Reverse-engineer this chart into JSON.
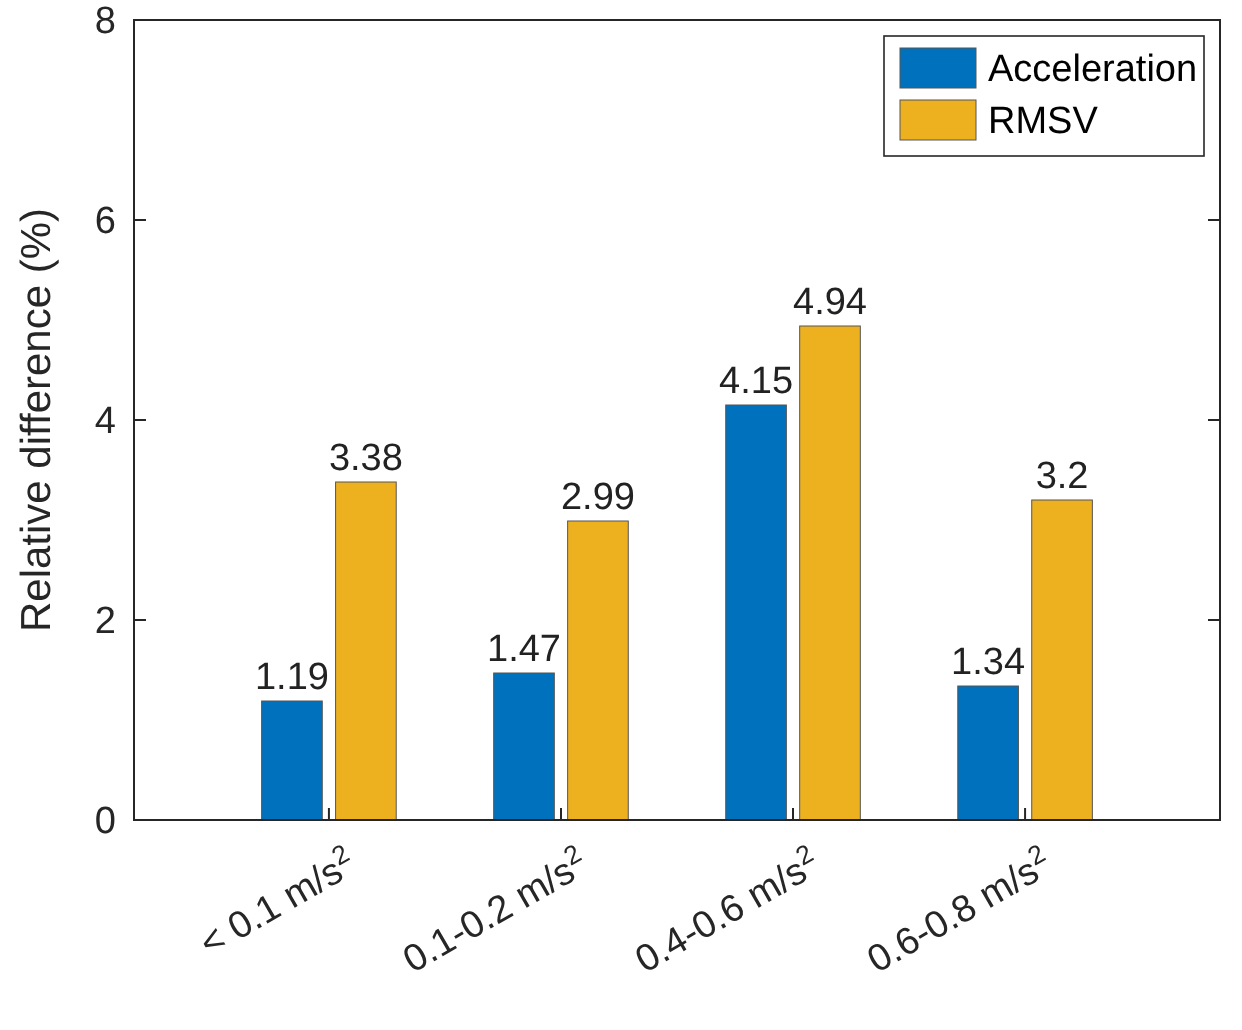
{
  "chart_data": {
    "type": "bar",
    "ylabel": "Relative difference (%)",
    "categories": [
      "< 0.1 m/s$^{2}$",
      "0.1-0.2 m/s$^{2}$",
      "0.4-0.6 m/s$^{2}$",
      "0.6-0.8 m/s$^{2}$"
    ],
    "series": [
      {
        "name": "Acceleration",
        "color": "#0072bd",
        "values": [
          1.19,
          1.47,
          4.15,
          1.34
        ]
      },
      {
        "name": "RMSV",
        "color": "#edb120",
        "values": [
          3.38,
          2.99,
          4.94,
          3.2
        ]
      }
    ],
    "ylim": [
      0,
      8
    ],
    "yticks": [
      0,
      2,
      4,
      6,
      8
    ],
    "data_labels": true,
    "legend": "top right",
    "grid": false
  }
}
